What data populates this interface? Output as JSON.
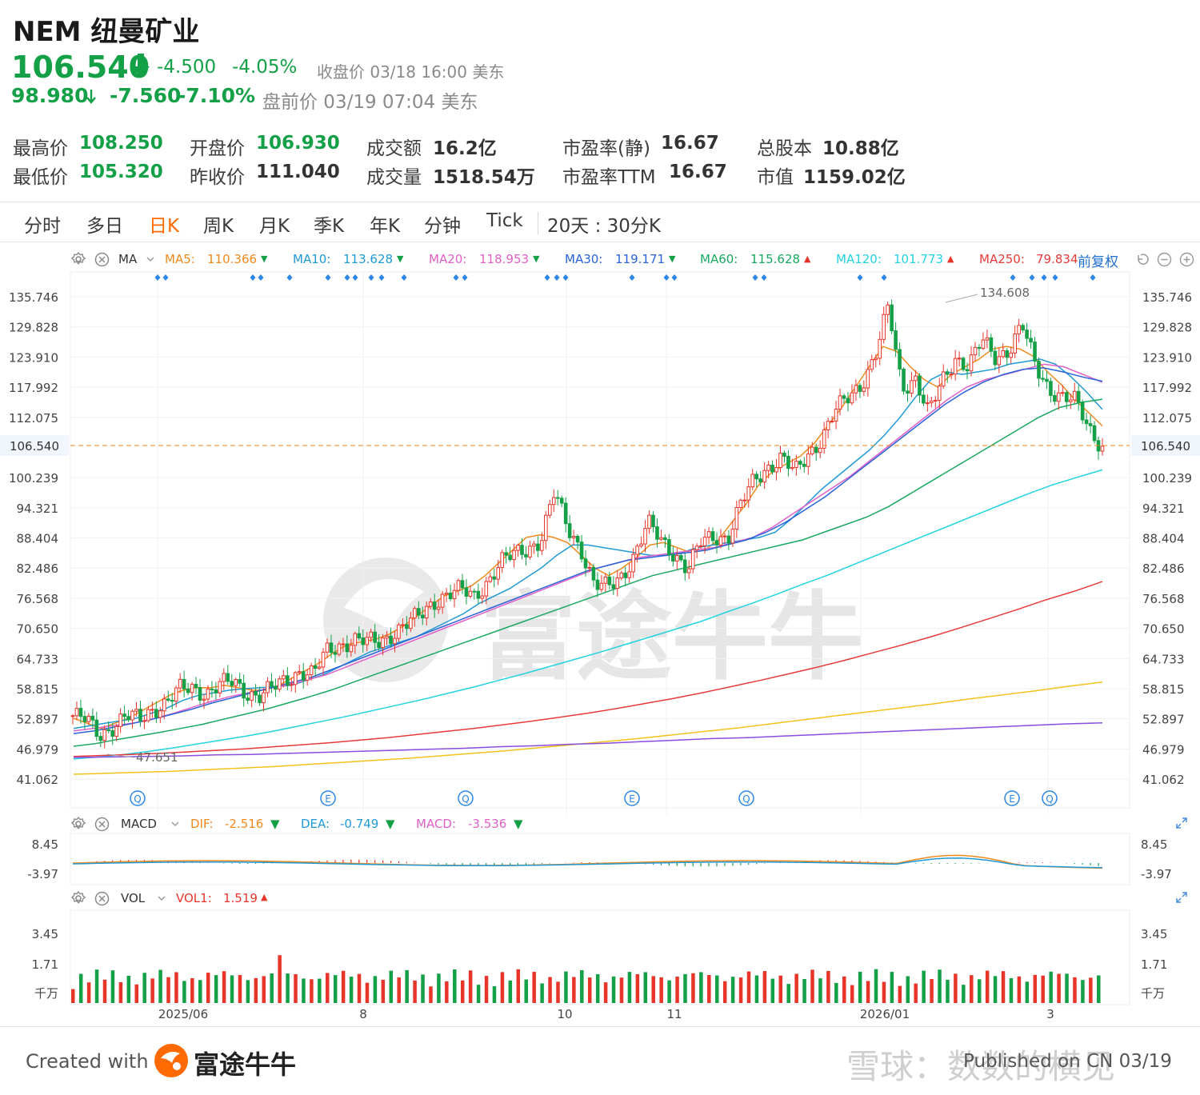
{
  "header": {
    "title": "NEM 纽曼矿业",
    "price": "106.540",
    "change": "-4.500",
    "change_pct": "-4.05%",
    "close_label": "收盘价 03/18 16:00 美东",
    "pre_price": "98.980",
    "pre_change": "-7.560",
    "pre_change_pct": "-7.10%",
    "pre_label": "盘前价 03/19 07:04 美东"
  },
  "stats": {
    "high_label": "最高价",
    "high": "108.250",
    "low_label": "最低价",
    "low": "105.320",
    "open_label": "开盘价",
    "open": "106.930",
    "prev_label": "昨收价",
    "prev": "111.040",
    "amount_label": "成交额",
    "amount": "16.2亿",
    "volume_label": "成交量",
    "volume": "1518.54万",
    "pe_static_label": "市盈率(静)",
    "pe_static": "16.67",
    "pe_ttm_label": "市盈率TTM",
    "pe_ttm": "16.67",
    "shares_label": "总股本",
    "shares": "10.88亿",
    "mcap_label": "市值",
    "mcap": "1159.02亿"
  },
  "tabs": [
    "分时",
    "多日",
    "日K",
    "周K",
    "月K",
    "季K",
    "年K",
    "分钟",
    "Tick"
  ],
  "active_tab": "日K",
  "tab_extra": "20天 : 30分K",
  "ma_legend": {
    "label": "MA",
    "items": [
      {
        "name": "MA5:",
        "value": "110.366",
        "color": "#f08a1c",
        "arrow": "▼"
      },
      {
        "name": "MA10:",
        "value": "113.628",
        "color": "#1f9ad6",
        "arrow": "▼"
      },
      {
        "name": "MA20:",
        "value": "118.953",
        "color": "#e060c8",
        "arrow": "▼"
      },
      {
        "name": "MA30:",
        "value": "119.171",
        "color": "#2a62d8",
        "arrow": "▼"
      },
      {
        "name": "MA60:",
        "value": "115.628",
        "color": "#1aa860",
        "arrow": "▲"
      },
      {
        "name": "MA120:",
        "value": "101.773",
        "color": "#22d3e0",
        "arrow": "▲"
      },
      {
        "name": "MA250:",
        "value": "79.834",
        "color": "#e83a3a",
        "arrow": ""
      }
    ],
    "restore": "前复权"
  },
  "macd_legend": {
    "label": "MACD",
    "dif_label": "DIF:",
    "dif": "-2.516",
    "dea_label": "DEA:",
    "dea": "-0.749",
    "macd_label": "MACD:",
    "macd": "-3.536"
  },
  "vol_legend": {
    "label": "VOL",
    "vol1_label": "VOL1:",
    "vol1": "1.519",
    "arrow": "▲"
  },
  "footer": {
    "created": "Created with",
    "brand": "富途牛牛",
    "watermark": "富途牛牛",
    "xq": "雪球：数数的横见",
    "published": "Published on CN 03/19"
  },
  "colors": {
    "up": "#e8352a",
    "down": "#14a046",
    "accent": "#ff6a00"
  },
  "chart_data": {
    "type": "candlestick",
    "price_axis_ticks": [
      "135.746",
      "129.828",
      "123.910",
      "117.992",
      "112.075",
      "106.540",
      "100.239",
      "94.321",
      "88.404",
      "82.486",
      "76.568",
      "70.650",
      "64.733",
      "58.815",
      "52.897",
      "46.979",
      "41.062"
    ],
    "price_axis_values": [
      135.746,
      129.828,
      123.91,
      117.992,
      112.075,
      106.54,
      100.239,
      94.321,
      88.404,
      82.486,
      76.568,
      70.65,
      64.733,
      58.815,
      52.897,
      46.979,
      41.062
    ],
    "last_price": 106.54,
    "x_ticks": [
      "2025/06",
      "8",
      "10",
      "11",
      "2026/01",
      "3"
    ],
    "annotations": {
      "high": "134.608",
      "low": "47.651"
    },
    "event_markers": [
      "Q",
      "E",
      "Q",
      "E",
      "Q",
      "E",
      "Q"
    ],
    "close_path": [
      53.5,
      52.5,
      49.8,
      51.5,
      53.2,
      52.8,
      55.0,
      56.0,
      58.5,
      59.0,
      58.0,
      59.5,
      60.0,
      58.2,
      57.5,
      58.8,
      60.5,
      62.5,
      61.5,
      66.0,
      67.5,
      68.5,
      67.8,
      68.0,
      70.0,
      71.5,
      73.0,
      76.0,
      77.5,
      78.0,
      76.8,
      80.0,
      83.5,
      85.0,
      86.5,
      88.0,
      97.0,
      90.5,
      86.5,
      79.0,
      78.5,
      81.0,
      85.0,
      91.0,
      88.0,
      85.5,
      82.0,
      87.5,
      89.0,
      88.5,
      95.0,
      100.0,
      102.5,
      104.0,
      101.0,
      105.0,
      108.0,
      113.0,
      116.0,
      119.0,
      124.0,
      133.5,
      118.0,
      120.0,
      112.5,
      119.0,
      124.0,
      122.0,
      127.0,
      124.0,
      125.5,
      130.0,
      122.0,
      118.0,
      116.0,
      115.0,
      110.0,
      106.54
    ],
    "ma_lines": {
      "MA5": [
        53.0,
        52.0,
        51.0,
        52.0,
        53.0,
        54.5,
        56.0,
        57.5,
        58.5,
        59.0,
        59.0,
        59.5,
        59.0,
        58.5,
        58.5,
        59.5,
        61.0,
        62.5,
        64.0,
        66.0,
        67.5,
        68.0,
        68.5,
        69.5,
        71.0,
        73.0,
        75.0,
        77.0,
        78.0,
        79.0,
        81.0,
        83.5,
        86.0,
        88.5,
        89.0,
        88.5,
        87.5,
        85.0,
        82.5,
        81.0,
        82.5,
        84.5,
        87.0,
        87.5,
        86.5,
        85.5,
        86.0,
        88.0,
        91.5,
        95.0,
        99.0,
        101.5,
        103.0,
        104.5,
        107.0,
        110.5,
        114.0,
        118.0,
        122.0,
        126.0,
        125.0,
        122.0,
        119.5,
        118.0,
        120.5,
        122.0,
        123.5,
        125.5,
        126.0,
        125.5,
        124.0,
        121.0,
        118.5,
        115.5,
        113.0,
        110.366
      ],
      "MA10": [
        51.0,
        51.5,
        52.0,
        52.5,
        53.0,
        54.0,
        55.0,
        56.5,
        57.5,
        58.0,
        58.5,
        58.8,
        59.0,
        59.2,
        59.5,
        60.5,
        61.5,
        63.0,
        64.5,
        66.0,
        67.0,
        68.0,
        69.0,
        70.5,
        72.0,
        73.5,
        75.5,
        77.0,
        78.5,
        80.5,
        82.5,
        85.0,
        87.0,
        87.0,
        86.5,
        86.0,
        85.5,
        85.0,
        85.0,
        85.5,
        86.5,
        87.0,
        87.5,
        88.0,
        88.5,
        89.5,
        92.0,
        95.0,
        98.0,
        100.5,
        103.0,
        105.5,
        108.5,
        112.0,
        116.0,
        119.5,
        121.0,
        120.5,
        121.0,
        121.5,
        122.5,
        123.0,
        123.5,
        122.5,
        120.0,
        117.0,
        113.628
      ],
      "MA20": [
        50.5,
        51.0,
        51.5,
        52.0,
        52.8,
        53.8,
        55.0,
        56.2,
        57.2,
        58.0,
        58.8,
        59.5,
        60.5,
        61.5,
        63.0,
        64.5,
        66.0,
        67.5,
        69.0,
        70.5,
        72.0,
        73.5,
        75.0,
        76.5,
        78.0,
        79.5,
        81.0,
        82.5,
        83.5,
        84.5,
        85.0,
        85.5,
        86.0,
        86.5,
        87.5,
        88.5,
        90.5,
        93.0,
        95.5,
        98.0,
        100.5,
        103.5,
        106.5,
        109.5,
        112.5,
        115.5,
        118.0,
        119.5,
        120.5,
        121.5,
        122.5,
        122.0,
        120.5,
        118.953
      ],
      "MA30": [
        50.0,
        50.5,
        51.2,
        52.0,
        52.8,
        53.8,
        54.8,
        56.0,
        57.0,
        58.0,
        59.0,
        60.0,
        61.0,
        62.5,
        64.0,
        65.5,
        67.0,
        68.5,
        70.0,
        71.5,
        73.0,
        74.5,
        76.0,
        77.5,
        79.0,
        80.5,
        82.0,
        83.0,
        84.0,
        84.5,
        85.0,
        85.5,
        86.0,
        87.0,
        88.0,
        89.5,
        91.5,
        94.0,
        96.5,
        99.5,
        102.5,
        105.5,
        108.5,
        111.5,
        114.5,
        117.0,
        119.0,
        120.5,
        121.5,
        121.8,
        121.0,
        120.0,
        119.171
      ],
      "MA60": [
        47.5,
        48.0,
        48.8,
        49.5,
        50.2,
        51.0,
        51.8,
        52.8,
        53.8,
        54.8,
        56.0,
        57.2,
        58.5,
        60.0,
        61.5,
        63.0,
        64.5,
        66.0,
        67.5,
        69.0,
        70.5,
        72.0,
        73.5,
        75.0,
        76.5,
        78.0,
        79.5,
        81.0,
        82.0,
        83.0,
        84.0,
        85.0,
        86.0,
        87.0,
        88.0,
        89.5,
        91.0,
        92.5,
        94.5,
        97.0,
        99.5,
        102.0,
        104.5,
        107.0,
        109.5,
        112.0,
        114.0,
        115.0,
        115.628
      ],
      "MA120": [
        45.0,
        45.4,
        45.9,
        46.5,
        47.2,
        48.0,
        48.8,
        49.6,
        50.5,
        51.5,
        52.5,
        53.5,
        54.6,
        55.7,
        56.8,
        58.0,
        59.2,
        60.5,
        61.8,
        63.2,
        64.6,
        66.0,
        67.5,
        69.0,
        70.5,
        72.0,
        73.8,
        75.5,
        77.3,
        79.2,
        81.0,
        83.0,
        85.0,
        87.0,
        89.0,
        91.0,
        93.0,
        95.0,
        97.0,
        98.8,
        100.3,
        101.773
      ],
      "MA250": [
        45.5,
        45.7,
        45.9,
        46.1,
        46.4,
        46.7,
        47.0,
        47.4,
        47.8,
        48.2,
        48.7,
        49.2,
        49.8,
        50.4,
        51.0,
        51.7,
        52.4,
        53.2,
        54.0,
        54.9,
        55.9,
        56.9,
        58.0,
        59.2,
        60.4,
        61.7,
        63.0,
        64.4,
        65.9,
        67.4,
        69.0,
        70.7,
        72.5,
        74.3,
        76.2,
        77.9,
        79.834
      ],
      "MA_yellow": [
        42.0,
        42.2,
        42.4,
        42.6,
        42.9,
        43.2,
        43.5,
        43.9,
        44.3,
        44.7,
        45.1,
        45.6,
        46.1,
        46.6,
        47.2,
        47.8,
        48.4,
        49.0,
        49.7,
        50.4,
        51.1,
        51.9,
        52.7,
        53.5,
        54.3,
        55.1,
        55.9,
        56.8,
        57.6,
        58.4,
        59.3,
        60.1
      ],
      "MA_purple": [
        45.3,
        45.4,
        45.5,
        45.6,
        45.8,
        45.9,
        46.1,
        46.3,
        46.5,
        46.7,
        46.9,
        47.1,
        47.4,
        47.6,
        47.9,
        48.1,
        48.4,
        48.7,
        49.0,
        49.2,
        49.5,
        49.8,
        50.1,
        50.4,
        50.7,
        51.0,
        51.3,
        51.6,
        51.9,
        52.1
      ]
    },
    "macd": {
      "dif": -2.516,
      "dea": -0.749,
      "macd": -3.536,
      "axis_ticks": [
        "8.45",
        "-3.97"
      ]
    },
    "volume": {
      "vol1": 1.519,
      "axis_ticks": [
        "3.45",
        "1.71",
        "千万"
      ]
    }
  }
}
